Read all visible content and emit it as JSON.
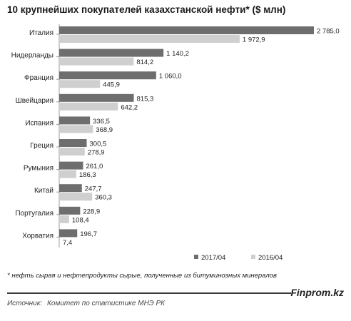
{
  "title": "10 крупнейших покупателей казахстанской нефти* ($ млн)",
  "chart_data": {
    "type": "bar",
    "orientation": "horizontal",
    "categories": [
      "Италия",
      "Нидерланды",
      "Франция",
      "Швейцария",
      "Испания",
      "Греция",
      "Румыния",
      "Китай",
      "Португалия",
      "Хорватия"
    ],
    "series": [
      {
        "name": "2017/04",
        "color": "#6e6e6e",
        "values": [
          2785.0,
          1140.2,
          1060.0,
          815.3,
          336.5,
          300.5,
          261.0,
          247.7,
          228.9,
          196.7
        ]
      },
      {
        "name": "2016/04",
        "color": "#cfcfcf",
        "values": [
          1972.9,
          814.2,
          445.9,
          642.2,
          368.9,
          278.9,
          186.3,
          360.3,
          108.4,
          7.4
        ]
      }
    ],
    "value_labels": [
      [
        "2 785,0",
        "1 140,2",
        "1 060,0",
        "815,3",
        "336,5",
        "300,5",
        "261,0",
        "247,7",
        "228,9",
        "196,7"
      ],
      [
        "1 972,9",
        "814,2",
        "445,9",
        "642,2",
        "368,9",
        "278,9",
        "186,3",
        "360,3",
        "108,4",
        "7,4"
      ]
    ],
    "legend_position": "bottom-right",
    "grid": false
  },
  "footnote": "* нефть сырая и нефтепродукты сырые, полученные из битуминозных минералов",
  "brand": "Finprom.kz",
  "source": {
    "label": "Источник:",
    "text": "Комитет по статистике МНЭ РК"
  }
}
